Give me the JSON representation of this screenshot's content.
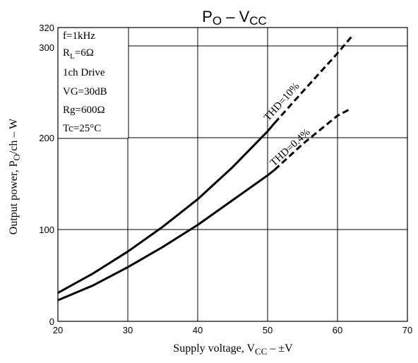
{
  "chart_data": {
    "type": "line",
    "title": {
      "main": "P",
      "sub1": "O",
      "mid": " – V",
      "sub2": "CC"
    },
    "xlabel": {
      "pre": "Supply voltage,  V",
      "sub": "CC",
      "post": " – ±V"
    },
    "ylabel": {
      "pre": "Output power,  P",
      "sub": "O",
      "post": "/ch  –  W"
    },
    "xlim": [
      20,
      70
    ],
    "ylim": [
      0,
      320
    ],
    "x_ticks": [
      "20",
      "30",
      "40",
      "50",
      "60",
      "70"
    ],
    "y_ticks": [
      "0",
      "100",
      "200",
      "300",
      "320"
    ],
    "grid": true,
    "conditions": [
      {
        "text": "f=1kHz"
      },
      {
        "pre": "R",
        "sub": "L",
        "post": "=6Ω"
      },
      {
        "text": "1ch Drive"
      },
      {
        "text": "VG=30dB"
      },
      {
        "text": "Rg=600Ω"
      },
      {
        "text": "Tc=25°C"
      }
    ],
    "series": [
      {
        "name": "THD=10%",
        "solid": {
          "x": [
            20,
            25,
            30,
            35,
            40,
            45,
            50,
            51
          ],
          "y": [
            31,
            52,
            76,
            103,
            133,
            168,
            207,
            216
          ]
        },
        "dashed": {
          "x": [
            51,
            55,
            60,
            62
          ],
          "y": [
            216,
            250,
            292,
            310
          ]
        }
      },
      {
        "name": "THD=0.4%",
        "solid": {
          "x": [
            20,
            25,
            30,
            35,
            40,
            45,
            50,
            51
          ],
          "y": [
            23,
            39,
            59,
            81,
            105,
            132,
            159,
            165
          ]
        },
        "dashed": {
          "x": [
            51,
            55,
            60,
            62
          ],
          "y": [
            165,
            193,
            224,
            232
          ]
        }
      }
    ]
  }
}
